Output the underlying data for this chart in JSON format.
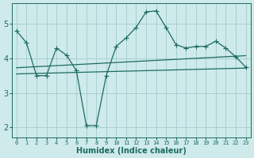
{
  "xlabel": "Humidex (Indice chaleur)",
  "ylabel": "",
  "xlim": [
    -0.5,
    23.5
  ],
  "ylim": [
    1.7,
    5.6
  ],
  "yticks": [
    2,
    3,
    4,
    5
  ],
  "xticks": [
    0,
    1,
    2,
    3,
    4,
    5,
    6,
    7,
    8,
    9,
    10,
    11,
    12,
    13,
    14,
    15,
    16,
    17,
    18,
    19,
    20,
    21,
    22,
    23
  ],
  "xtick_labels": [
    "0",
    "1",
    "2",
    "3",
    "4",
    "5",
    "6",
    "7",
    "8",
    "9",
    "10",
    "11",
    "12",
    "13",
    "14",
    "15",
    "16",
    "17",
    "18",
    "19",
    "20",
    "21",
    "22",
    "23"
  ],
  "bg_color": "#ceeaea",
  "grid_color": "#aacfcf",
  "line_color": "#1d6b60",
  "line1_x": [
    0,
    1,
    2,
    3,
    4,
    5,
    6,
    7,
    8,
    9,
    10,
    11,
    12,
    13,
    14,
    15,
    16,
    17,
    18,
    19,
    20,
    21,
    22,
    23
  ],
  "line1_y": [
    4.8,
    4.45,
    3.5,
    3.5,
    4.3,
    4.1,
    3.65,
    2.05,
    2.05,
    3.5,
    4.35,
    4.6,
    4.9,
    5.35,
    5.38,
    4.9,
    4.4,
    4.3,
    4.35,
    4.35,
    4.5,
    4.3,
    4.05,
    3.75
  ],
  "line2_x": [
    0,
    23
  ],
  "line2_y": [
    3.55,
    3.72
  ],
  "line3_x": [
    0,
    23
  ],
  "line3_y": [
    3.73,
    4.08
  ],
  "marker": "+",
  "markersize": 4,
  "markeredgewidth": 0.8,
  "linewidth": 0.9
}
